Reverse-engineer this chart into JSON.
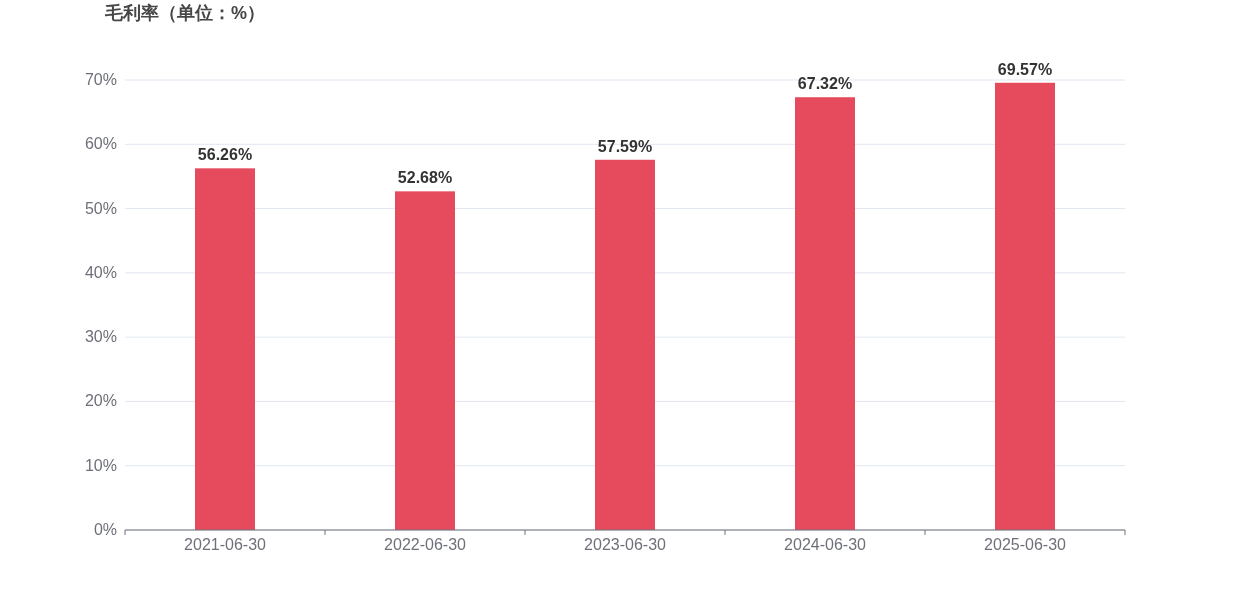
{
  "chart_data": {
    "type": "bar",
    "title": "毛利率（单位：%）",
    "categories": [
      "2021-06-30",
      "2022-06-30",
      "2023-06-30",
      "2024-06-30",
      "2025-06-30"
    ],
    "values": [
      56.26,
      52.68,
      57.59,
      67.32,
      69.57
    ],
    "value_labels": [
      "56.26%",
      "52.68%",
      "57.59%",
      "67.32%",
      "69.57%"
    ],
    "color": "#e64b5d",
    "ylim": [
      0,
      70
    ],
    "yticks": [
      {
        "value": 0,
        "label": "0%"
      },
      {
        "value": 10,
        "label": "10%"
      },
      {
        "value": 20,
        "label": "20%"
      },
      {
        "value": 30,
        "label": "30%"
      },
      {
        "value": 40,
        "label": "40%"
      },
      {
        "value": 50,
        "label": "50%"
      },
      {
        "value": 60,
        "label": "60%"
      },
      {
        "value": 70,
        "label": "70%"
      }
    ],
    "grid": "y"
  }
}
